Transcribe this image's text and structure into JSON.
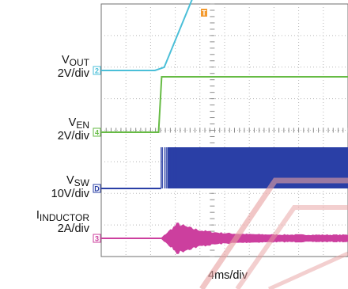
{
  "chart_data": {
    "type": "line",
    "title": "",
    "xlabel": "4ms/div",
    "ylabel": "",
    "grid": true,
    "time_per_div_ms": 4,
    "divisions_x": 10,
    "divisions_y": 8,
    "x_range_ms": [
      -16,
      24
    ],
    "trigger_marker": "T",
    "series": [
      {
        "name": "VOUT",
        "scale": "2V/div",
        "channel_marker": "2",
        "color": "#4bbfd8",
        "behavior": "linear soft-start ramp",
        "points_ms_div": [
          [
            -16,
            0
          ],
          [
            -7.3,
            0
          ],
          [
            -5.8,
            0.1
          ],
          [
            -0.2,
            2.75
          ],
          [
            24,
            2.75
          ]
        ]
      },
      {
        "name": "VEN",
        "scale": "2V/div",
        "channel_marker": "4",
        "color": "#66bb44",
        "behavior": "step enable",
        "points_ms_div": [
          [
            -16,
            0
          ],
          [
            -6.7,
            0
          ],
          [
            -6.2,
            1.75
          ],
          [
            24,
            1.75
          ]
        ]
      },
      {
        "name": "VSW",
        "scale": "10V/div",
        "channel_marker": "D",
        "color": "#2a3fa6",
        "behavior": "switching burst",
        "low_div": 0,
        "high_div": 1.3,
        "start_ms": -6.3
      },
      {
        "name": "IINDUCTOR",
        "scale": "2A/div",
        "channel_marker": "3",
        "color": "#cc3f9e",
        "behavior": "ripple envelope",
        "peak_envelope_div": 0.45,
        "steady_envelope_div": 0.1,
        "start_ms": -6.3
      }
    ]
  },
  "labels": {
    "vout": {
      "main": "V",
      "sub": "OUT",
      "scale": "2V/div"
    },
    "ven": {
      "main": "V",
      "sub": "EN",
      "scale": "2V/div"
    },
    "vsw": {
      "main": "V",
      "sub": "SW",
      "scale": "10V/div"
    },
    "iind": {
      "main": "I",
      "sub": "INDUCTOR",
      "scale": "2A/div"
    },
    "xscale": "4ms/div"
  },
  "colors": {
    "grid": "#b8b8b8",
    "watermark": "#e8a0a0"
  }
}
